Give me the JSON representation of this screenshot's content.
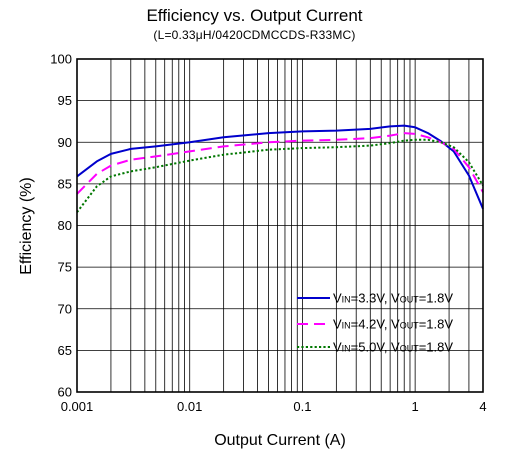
{
  "chart_data": {
    "type": "line",
    "title": "Efficiency vs. Output Current",
    "subtitle": "(L=0.33μH/0420CDMCCDS-R33MC)",
    "xlabel": "Output Current (A)",
    "ylabel": "Efficiency (%)",
    "x_scale": "log",
    "xlim": [
      0.001,
      4
    ],
    "ylim": [
      60,
      100
    ],
    "x_ticks": [
      {
        "value": 0.001,
        "label": "0.001"
      },
      {
        "value": 0.01,
        "label": "0.01"
      },
      {
        "value": 0.1,
        "label": "0.1"
      },
      {
        "value": 1,
        "label": "1"
      },
      {
        "value": 4,
        "label": "4"
      }
    ],
    "y_ticks": [
      {
        "value": 60,
        "label": "60"
      },
      {
        "value": 65,
        "label": "65"
      },
      {
        "value": 70,
        "label": "70"
      },
      {
        "value": 75,
        "label": "75"
      },
      {
        "value": 80,
        "label": "80"
      },
      {
        "value": 85,
        "label": "85"
      },
      {
        "value": 90,
        "label": "90"
      },
      {
        "value": 95,
        "label": "95"
      },
      {
        "value": 100,
        "label": "100"
      }
    ],
    "grid": true,
    "legend_position": "bottom-right",
    "series": [
      {
        "name": "V_IN=3.3V, V_OUT=1.8V",
        "legend": {
          "v1": "V",
          "s1": "IN",
          "t1": "=3.3V, V",
          "s2": "OUT",
          "t2": "=1.8V"
        },
        "color": "#0000cc",
        "style": "solid",
        "x": [
          0.001,
          0.0015,
          0.002,
          0.003,
          0.005,
          0.01,
          0.02,
          0.05,
          0.1,
          0.2,
          0.4,
          0.6,
          0.8,
          1.0,
          1.3,
          1.7,
          2.2,
          3.0,
          4.0
        ],
        "y": [
          85.9,
          87.7,
          88.6,
          89.2,
          89.5,
          90.0,
          90.6,
          91.1,
          91.3,
          91.4,
          91.6,
          91.9,
          92.0,
          91.8,
          91.1,
          90.1,
          88.9,
          86.0,
          82.0
        ]
      },
      {
        "name": "V_IN=4.2V, V_OUT=1.8V",
        "legend": {
          "v1": "V",
          "s1": "IN",
          "t1": "=4.2V, V",
          "s2": "OUT",
          "t2": "=1.8V"
        },
        "color": "#ff00ff",
        "style": "dashed",
        "x": [
          0.001,
          0.0015,
          0.002,
          0.003,
          0.005,
          0.01,
          0.02,
          0.05,
          0.1,
          0.2,
          0.4,
          0.6,
          0.8,
          1.0,
          1.3,
          1.7,
          2.2,
          3.0,
          4.0
        ],
        "y": [
          83.8,
          86.2,
          87.2,
          87.9,
          88.3,
          88.9,
          89.5,
          90.0,
          90.2,
          90.3,
          90.5,
          90.8,
          91.1,
          91.0,
          90.6,
          90.0,
          89.2,
          87.0,
          84.0
        ]
      },
      {
        "name": "V_IN=5.0V, V_OUT=1.8V",
        "legend": {
          "v1": "V",
          "s1": "IN",
          "t1": "=5.0V, V",
          "s2": "OUT",
          "t2": "=1.8V"
        },
        "color": "#007700",
        "style": "dotted",
        "x": [
          0.001,
          0.0015,
          0.002,
          0.003,
          0.005,
          0.01,
          0.02,
          0.05,
          0.1,
          0.2,
          0.4,
          0.6,
          0.8,
          1.0,
          1.3,
          1.7,
          2.2,
          3.0,
          4.0
        ],
        "y": [
          81.6,
          84.7,
          85.9,
          86.5,
          87.0,
          87.8,
          88.5,
          89.1,
          89.3,
          89.4,
          89.6,
          89.9,
          90.2,
          90.3,
          90.3,
          90.0,
          89.4,
          87.6,
          84.8
        ]
      }
    ]
  }
}
